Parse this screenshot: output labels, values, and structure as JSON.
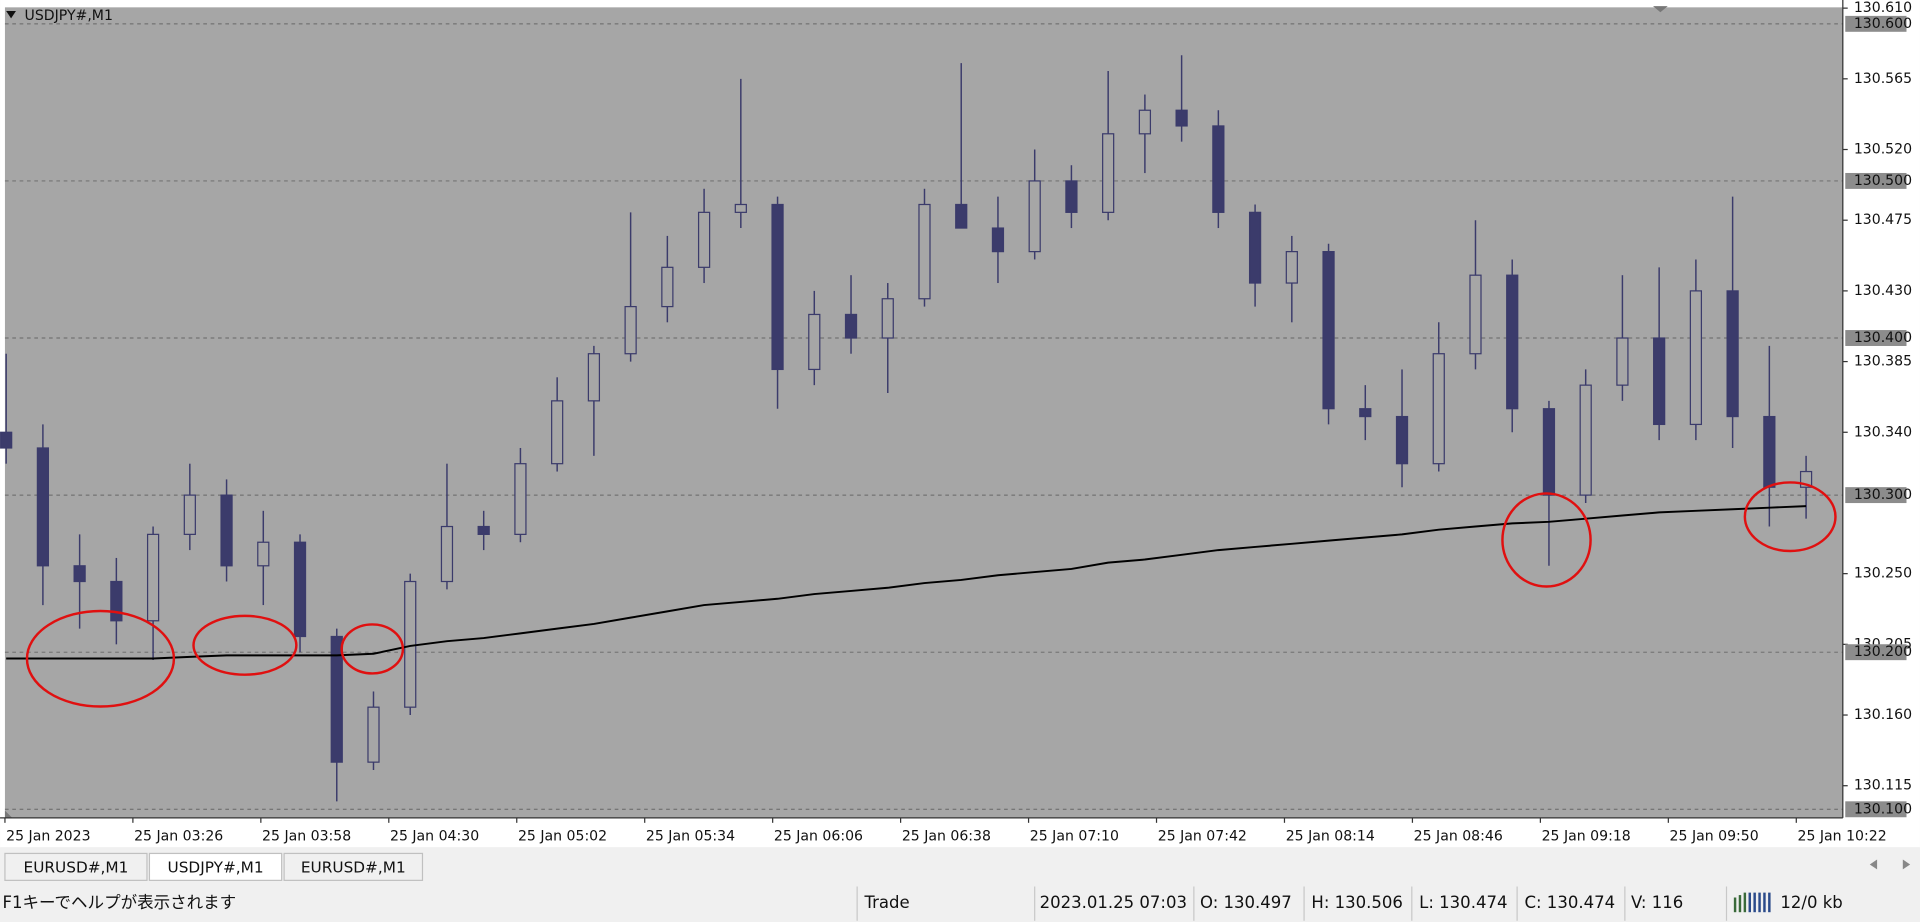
{
  "chart_data": {
    "type": "candlestick",
    "title": "USDJPY#,M1",
    "x_labels": [
      "25 Jan 2023",
      "25 Jan 03:26",
      "25 Jan 03:58",
      "25 Jan 04:30",
      "25 Jan 05:02",
      "25 Jan 05:34",
      "25 Jan 06:06",
      "25 Jan 06:38",
      "25 Jan 07:10",
      "25 Jan 07:42",
      "25 Jan 08:14",
      "25 Jan 08:46",
      "25 Jan 09:18",
      "25 Jan 09:50",
      "25 Jan 10:22"
    ],
    "open": [
      130.34,
      130.33,
      130.255,
      130.245,
      130.22,
      130.275,
      130.3,
      130.255,
      130.27,
      130.21,
      130.13,
      130.165,
      130.245,
      130.28,
      130.275,
      130.32,
      130.36,
      130.39,
      130.42,
      130.445,
      130.48,
      130.485,
      130.38,
      130.415,
      130.4,
      130.425,
      130.485,
      130.47,
      130.455,
      130.5,
      130.48,
      130.53,
      130.545,
      130.535,
      130.48,
      130.435,
      130.455,
      130.355,
      130.35,
      130.32,
      130.39,
      130.44,
      130.355,
      130.3,
      130.37,
      130.4,
      130.345,
      130.43,
      130.35,
      130.305
    ],
    "high": [
      130.39,
      130.345,
      130.275,
      130.26,
      130.28,
      130.32,
      130.31,
      130.29,
      130.275,
      130.215,
      130.175,
      130.25,
      130.32,
      130.29,
      130.33,
      130.375,
      130.395,
      130.48,
      130.465,
      130.495,
      130.565,
      130.49,
      130.43,
      130.44,
      130.435,
      130.495,
      130.575,
      130.49,
      130.52,
      130.51,
      130.57,
      130.555,
      130.58,
      130.545,
      130.485,
      130.465,
      130.46,
      130.37,
      130.38,
      130.41,
      130.475,
      130.45,
      130.36,
      130.38,
      130.44,
      130.445,
      130.45,
      130.49,
      130.395,
      130.325
    ],
    "low": [
      130.32,
      130.23,
      130.215,
      130.205,
      130.195,
      130.265,
      130.245,
      130.23,
      130.2,
      130.105,
      130.125,
      130.16,
      130.24,
      130.265,
      130.27,
      130.315,
      130.325,
      130.385,
      130.41,
      130.435,
      130.47,
      130.355,
      130.37,
      130.39,
      130.365,
      130.42,
      130.47,
      130.435,
      130.45,
      130.47,
      130.475,
      130.505,
      130.525,
      130.47,
      130.42,
      130.41,
      130.345,
      130.335,
      130.305,
      130.315,
      130.38,
      130.34,
      130.255,
      130.295,
      130.36,
      130.335,
      130.335,
      130.33,
      130.28,
      130.285
    ],
    "close": [
      130.33,
      130.255,
      130.245,
      130.22,
      130.275,
      130.3,
      130.255,
      130.27,
      130.21,
      130.13,
      130.165,
      130.245,
      130.28,
      130.275,
      130.32,
      130.36,
      130.39,
      130.42,
      130.445,
      130.48,
      130.485,
      130.38,
      130.415,
      130.4,
      130.425,
      130.485,
      130.47,
      130.455,
      130.5,
      130.48,
      130.53,
      130.545,
      130.535,
      130.48,
      130.435,
      130.455,
      130.355,
      130.35,
      130.32,
      130.39,
      130.44,
      130.355,
      130.3,
      130.37,
      130.4,
      130.345,
      130.43,
      130.35,
      130.305,
      130.315
    ],
    "line_values": [
      130.196,
      130.196,
      130.196,
      130.196,
      130.196,
      130.197,
      130.198,
      130.198,
      130.198,
      130.198,
      130.199,
      130.204,
      130.207,
      130.209,
      130.212,
      130.215,
      130.218,
      130.222,
      130.226,
      130.23,
      130.232,
      130.234,
      130.237,
      130.239,
      130.241,
      130.244,
      130.246,
      130.249,
      130.251,
      130.253,
      130.257,
      130.259,
      130.262,
      130.265,
      130.267,
      130.269,
      130.271,
      130.273,
      130.275,
      130.278,
      130.28,
      130.282,
      130.283,
      130.285,
      130.287,
      130.289,
      130.29,
      130.291,
      130.292,
      130.293
    ],
    "candle_color": "#3b3b6b",
    "up_fill": "#a6a6a6",
    "line_color": "#000000",
    "background": "#a6a6a6",
    "ylim": [
      130.0945,
      130.6105
    ],
    "yticks": [
      {
        "value": 130.61,
        "label": "130.610"
      },
      130.565,
      {
        "value": 130.52,
        "label": "130.520"
      },
      130.475,
      {
        "value": 130.43,
        "label": "130.430"
      },
      130.385,
      {
        "value": 130.34,
        "label": "130.340"
      },
      {
        "value": 130.25,
        "label": "130.250"
      },
      130.205,
      {
        "value": 130.16,
        "label": "130.160"
      },
      130.115
    ],
    "levels": [
      {
        "value": 130.6,
        "label": "130.600"
      },
      {
        "value": 130.5,
        "label": "130.500"
      },
      {
        "value": 130.4,
        "label": "130.400"
      },
      {
        "value": 130.3,
        "label": "130.300"
      },
      {
        "value": 130.2,
        "label": "130.200"
      },
      {
        "value": 130.1,
        "label": "130.100"
      }
    ]
  },
  "tabs": [
    "EURUSD#,M1",
    "USDJPY#,M1",
    "EURUSD#,M1"
  ],
  "status": {
    "help": "F1キーでヘルプが表示されます",
    "mode": "Trade",
    "time": "2023.01.25 07:03",
    "open": "O: 130.497",
    "high": "H: 130.506",
    "low": "L: 130.474",
    "close": "C: 130.474",
    "volume": "V: 116",
    "traffic": "12/0 kb"
  }
}
